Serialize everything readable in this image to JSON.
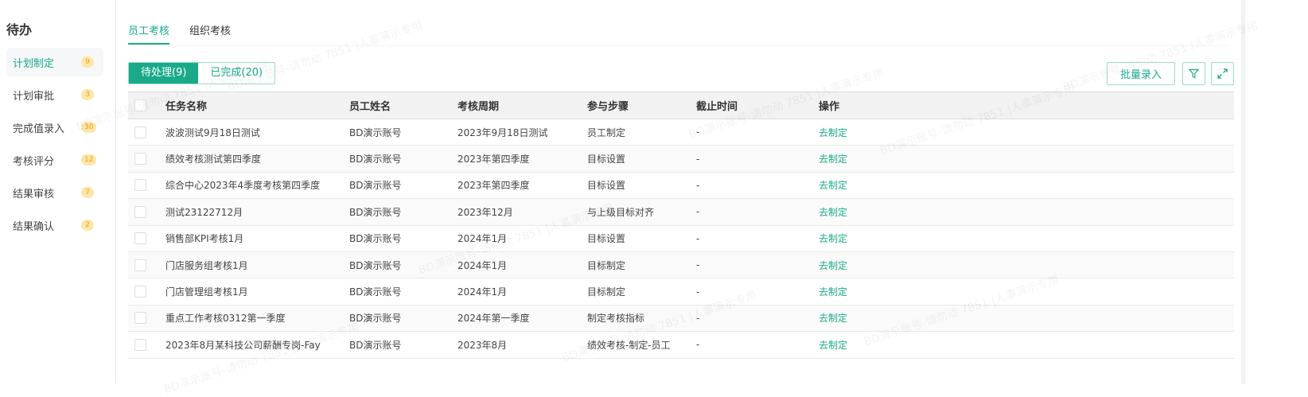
{
  "sidebar": {
    "title": "待办",
    "items": [
      {
        "label": "计划制定",
        "count": "9"
      },
      {
        "label": "计划审批",
        "count": "3"
      },
      {
        "label": "完成值录入",
        "count": "30"
      },
      {
        "label": "考核评分",
        "count": "12"
      },
      {
        "label": "结果审核",
        "count": "7"
      },
      {
        "label": "结果确认",
        "count": "2"
      }
    ]
  },
  "tabs": [
    {
      "label": "员工考核"
    },
    {
      "label": "组织考核"
    }
  ],
  "segments": [
    {
      "label": "待处理(9)"
    },
    {
      "label": "已完成(20)"
    }
  ],
  "toolbar": {
    "batch_label": "批量录入",
    "filter_icon": "filter-icon",
    "expand_icon": "expand-icon"
  },
  "table": {
    "headers": [
      "任务名称",
      "员工姓名",
      "考核周期",
      "参与步骤",
      "截止时间",
      "操作"
    ],
    "rows": [
      [
        "波波测试9月18日测试",
        "BD演示账号",
        "2023年9月18日测试",
        "员工制定",
        "-",
        "去制定"
      ],
      [
        "绩效考核测试第四季度",
        "BD演示账号",
        "2023年第四季度",
        "目标设置",
        "-",
        "去制定"
      ],
      [
        "综合中心2023年4季度考核第四季度",
        "BD演示账号",
        "2023年第四季度",
        "目标设置",
        "-",
        "去制定"
      ],
      [
        "测试23122712月",
        "BD演示账号",
        "2023年12月",
        "与上级目标对齐",
        "-",
        "去制定"
      ],
      [
        "销售部KPI考核1月",
        "BD演示账号",
        "2024年1月",
        "目标设置",
        "-",
        "去制定"
      ],
      [
        "门店服务组考核1月",
        "BD演示账号",
        "2024年1月",
        "目标制定",
        "-",
        "去制定"
      ],
      [
        "门店管理组考核1月",
        "BD演示账号",
        "2024年1月",
        "目标制定",
        "-",
        "去制定"
      ],
      [
        "重点工作考核0312第一季度",
        "BD演示账号",
        "2024年第一季度",
        "制定考核指标",
        "-",
        "去制定"
      ],
      [
        "2023年8月某科技公司薪酬专岗-Fay",
        "BD演示账号",
        "2023年8月",
        "绩效考核-制定-员工",
        "-",
        "去制定"
      ]
    ]
  },
  "watermark": "BD演示账号-请勿动 7851 |人事演示专用",
  "colors": {
    "accent": "#1aaa8a",
    "badge_bg": "#fde6a8",
    "badge_text": "#f0a020"
  }
}
